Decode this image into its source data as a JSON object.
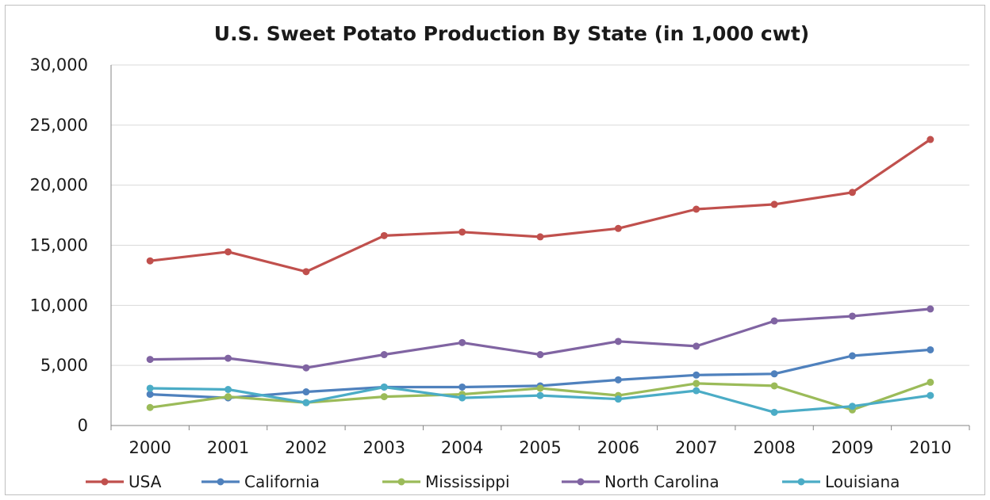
{
  "chart_data": {
    "type": "line",
    "title": "U.S. Sweet Potato Production By State (in 1,000 cwt)",
    "xlabel": "",
    "ylabel": "",
    "categories": [
      "2000",
      "2001",
      "2002",
      "2003",
      "2004",
      "2005",
      "2006",
      "2007",
      "2008",
      "2009",
      "2010"
    ],
    "yticks": [
      "0",
      "5,000",
      "10,000",
      "15,000",
      "20,000",
      "25,000",
      "30,000"
    ],
    "ylim": [
      0,
      30000
    ],
    "grid": "horizontal",
    "legend_position": "bottom",
    "series": [
      {
        "name": "USA",
        "color": "#c0504d",
        "values": [
          13700,
          14450,
          12800,
          15800,
          16100,
          15700,
          16400,
          18000,
          18400,
          19400,
          23800
        ]
      },
      {
        "name": "California",
        "color": "#4f81bd",
        "values": [
          2600,
          2300,
          2800,
          3200,
          3200,
          3300,
          3800,
          4200,
          4300,
          5800,
          6300
        ]
      },
      {
        "name": "Mississippi",
        "color": "#9bbb59",
        "values": [
          1500,
          2400,
          1900,
          2400,
          2600,
          3100,
          2500,
          3500,
          3300,
          1300,
          3600
        ]
      },
      {
        "name": "North Carolina",
        "color": "#8064a2",
        "values": [
          5500,
          5600,
          4800,
          5900,
          6900,
          5900,
          7000,
          6600,
          8700,
          9100,
          9700
        ]
      },
      {
        "name": "Louisiana",
        "color": "#4bacc6",
        "values": [
          3100,
          3000,
          1900,
          3200,
          2300,
          2500,
          2200,
          2900,
          1100,
          1600,
          2500
        ]
      }
    ]
  }
}
